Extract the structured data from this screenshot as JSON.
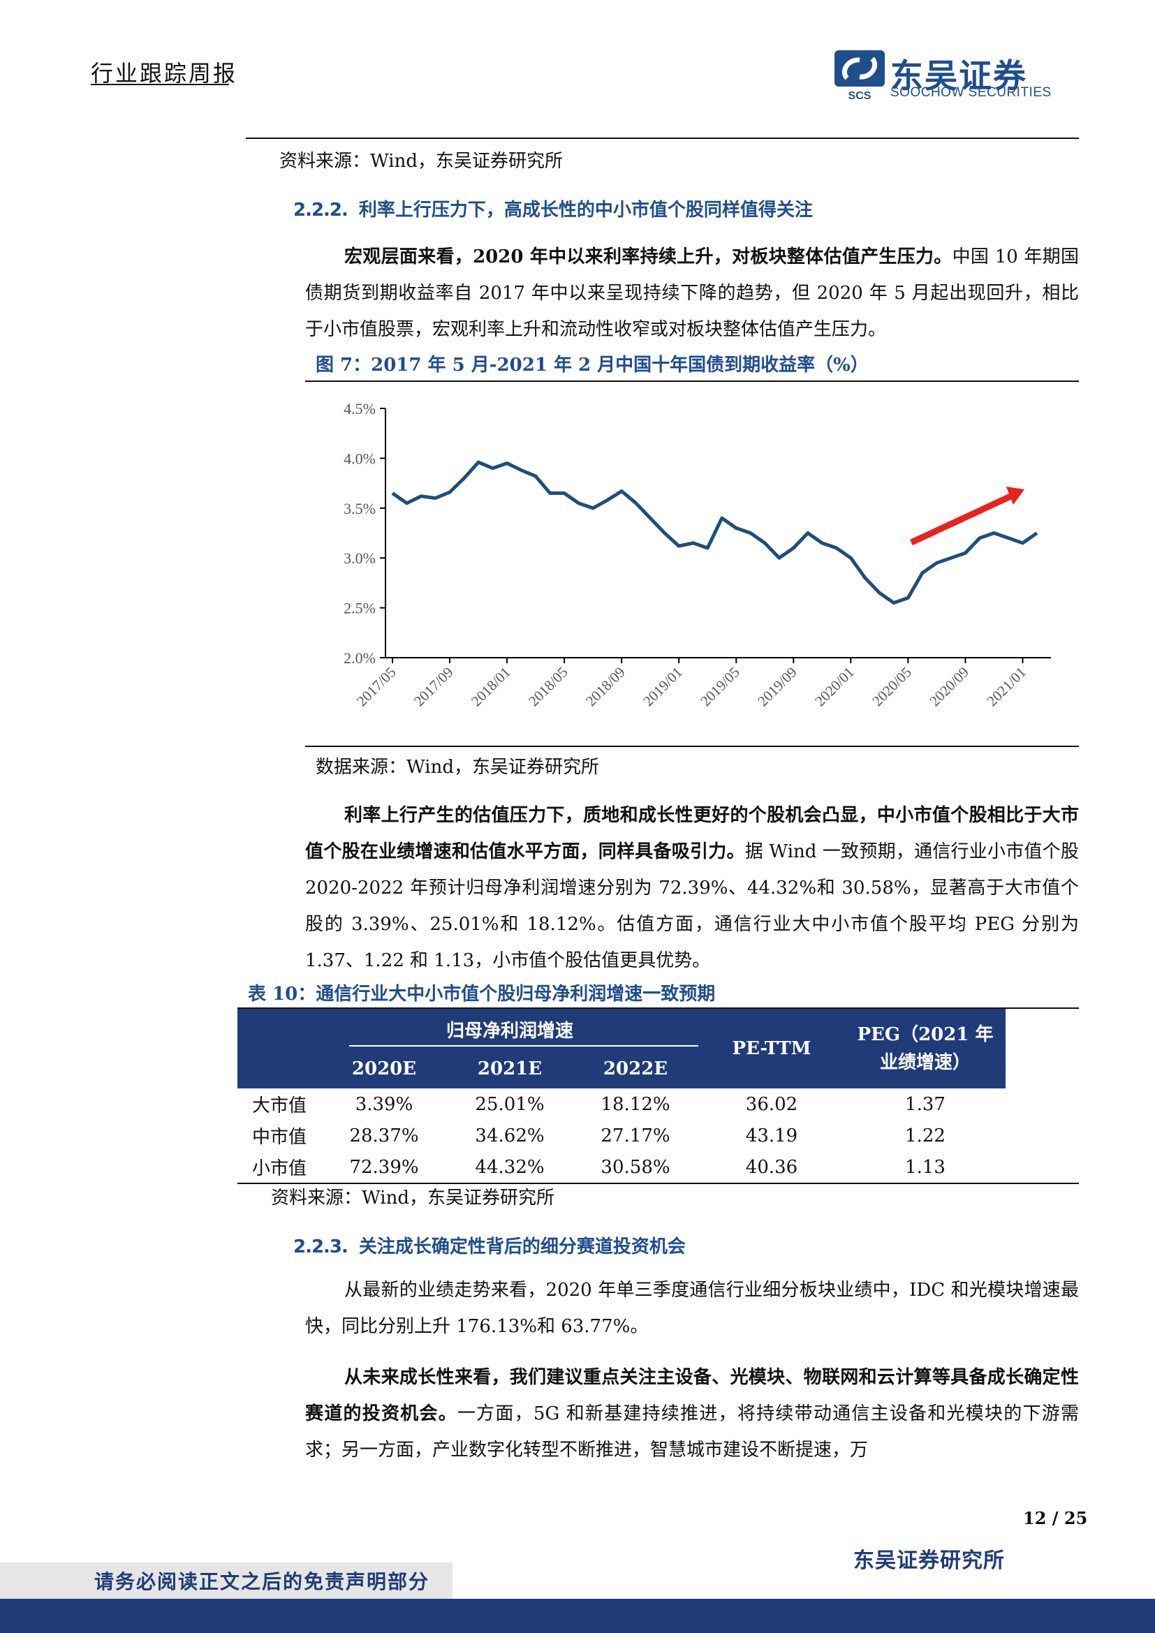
{
  "header": {
    "title": "行业跟踪周报",
    "logo_cn": "东吴证券",
    "logo_en": "SOOCHOW SECURITIES",
    "logo_abbr": "SCS"
  },
  "top_source": "资料来源：Wind，东吴证券研究所",
  "section_222": {
    "num": "2.2.2.",
    "title": "利率上行压力下，高成长性的中小市值个股同样值得关注"
  },
  "para1": {
    "bold": "宏观层面来看，2020 年中以来利率持续上升，对板块整体估值产生压力。",
    "rest": "中国 10 年期国债期货到期收益率自 2017 年中以来呈现持续下降的趋势，但 2020 年 5 月起出现回升，相比于小市值股票，宏观利率上升和流动性收窄或对板块整体估值产生压力。"
  },
  "figure7": {
    "title": "图 7：2017 年 5 月-2021 年 2 月中国十年国债到期收益率（%）",
    "source": "数据来源：Wind，东吴证券研究所"
  },
  "chart_data": {
    "type": "line",
    "title": "",
    "xlabel": "",
    "ylabel": "",
    "y_ticks": [
      "4.5%",
      "4.0%",
      "3.5%",
      "3.0%",
      "2.5%",
      "2.0%"
    ],
    "ylim": [
      2.0,
      4.5
    ],
    "x_ticks": [
      "2017/05",
      "2017/09",
      "2018/01",
      "2018/05",
      "2018/09",
      "2019/01",
      "2019/05",
      "2019/09",
      "2020/01",
      "2020/05",
      "2020/09",
      "2021/01"
    ],
    "series": [
      {
        "color": "#1f4e79",
        "x": [
          "2017/05",
          "2017/06",
          "2017/07",
          "2017/08",
          "2017/09",
          "2017/10",
          "2017/11",
          "2017/12",
          "2018/01",
          "2018/02",
          "2018/03",
          "2018/04",
          "2018/05",
          "2018/06",
          "2018/07",
          "2018/08",
          "2018/09",
          "2018/10",
          "2018/11",
          "2018/12",
          "2019/01",
          "2019/02",
          "2019/03",
          "2019/04",
          "2019/05",
          "2019/06",
          "2019/07",
          "2019/08",
          "2019/09",
          "2019/10",
          "2019/11",
          "2019/12",
          "2020/01",
          "2020/02",
          "2020/03",
          "2020/04",
          "2020/05",
          "2020/06",
          "2020/07",
          "2020/08",
          "2020/09",
          "2020/10",
          "2020/11",
          "2020/12",
          "2021/01",
          "2021/02"
        ],
        "values": [
          3.65,
          3.55,
          3.62,
          3.6,
          3.66,
          3.8,
          3.96,
          3.9,
          3.95,
          3.88,
          3.82,
          3.65,
          3.65,
          3.55,
          3.5,
          3.58,
          3.67,
          3.55,
          3.4,
          3.25,
          3.12,
          3.15,
          3.1,
          3.4,
          3.3,
          3.25,
          3.15,
          3.0,
          3.1,
          3.25,
          3.15,
          3.1,
          3.0,
          2.8,
          2.65,
          2.55,
          2.6,
          2.85,
          2.95,
          3.0,
          3.05,
          3.2,
          3.25,
          3.2,
          3.15,
          3.25
        ]
      }
    ],
    "annotation": {
      "type": "arrow",
      "color": "#e8231c",
      "meaning": "upward trend since 2020/05"
    },
    "grid": false,
    "legend": "none"
  },
  "para2": {
    "bold": "利率上行产生的估值压力下，质地和成长性更好的个股机会凸显，中小市值个股相比于大市值个股在业绩增速和估值水平方面，同样具备吸引力。",
    "rest": "据 Wind 一致预期，通信行业小市值个股 2020-2022 年预计归母净利润增速分别为 72.39%、44.32%和 30.58%，显著高于大市值个股的 3.39%、25.01%和 18.12%。估值方面，通信行业大中小市值个股平均 PEG 分别为 1.37、1.22 和 1.13，小市值个股估值更具优势。"
  },
  "table10": {
    "title": "表 10：通信行业大中小市值个股归母净利润增速一致预期",
    "group_header": "归母净利润增速",
    "headers": [
      "2020E",
      "2021E",
      "2022E",
      "PE-TTM",
      "PEG（2021 年业绩增速）"
    ],
    "rows": [
      {
        "label": "大市值",
        "cells": [
          "3.39%",
          "25.01%",
          "18.12%",
          "36.02",
          "1.37"
        ]
      },
      {
        "label": "中市值",
        "cells": [
          "28.37%",
          "34.62%",
          "27.17%",
          "43.19",
          "1.22"
        ]
      },
      {
        "label": "小市值",
        "cells": [
          "72.39%",
          "44.32%",
          "30.58%",
          "40.36",
          "1.13"
        ]
      }
    ],
    "source": "资料来源：Wind，东吴证券研究所"
  },
  "section_223": {
    "num": "2.2.3.",
    "title": "关注成长确定性背后的细分赛道投资机会"
  },
  "para3": "从最新的业绩走势来看，2020 年单三季度通信行业细分板块业绩中，IDC 和光模块增速最快，同比分别上升 176.13%和 63.77%。",
  "para4": {
    "bold": "从未来成长性来看，我们建议重点关注主设备、光模块、物联网和云计算等具备成长确定性赛道的投资机会。",
    "rest": "一方面，5G 和新基建持续推进，将持续带动通信主设备和光模块的下游需求；另一方面，产业数字化转型不断推进，智慧城市建设不断提速，万"
  },
  "page_number": "12 / 25",
  "footer_org": "东吴证券研究所",
  "disclaimer": "请务必阅读正文之后的免责声明部分",
  "colors": {
    "brand": "#1f3c78",
    "line": "#1f4e79",
    "arrow": "#e8231c"
  }
}
